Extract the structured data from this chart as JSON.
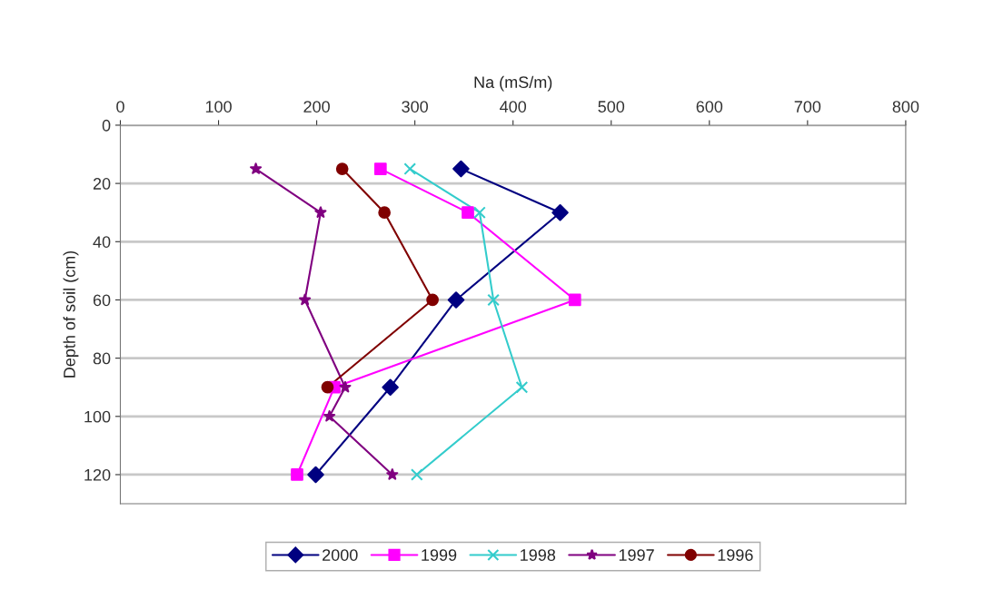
{
  "chart_data": {
    "type": "line",
    "xlabel": "Na (mS/m)",
    "ylabel": "Depth of soil (cm)",
    "xlim": [
      0,
      800
    ],
    "xticks": [
      0,
      100,
      200,
      300,
      400,
      500,
      600,
      700,
      800
    ],
    "ylim": [
      130,
      0
    ],
    "yticks": [
      0,
      20,
      40,
      60,
      80,
      100,
      120
    ],
    "grid": "y",
    "legend": "bottom",
    "line_style": "solid",
    "series": [
      {
        "name": "2000",
        "color": "#000080",
        "marker": "diamond",
        "x": [
          347,
          448,
          342,
          275,
          199
        ],
        "values": [
          15,
          30,
          60,
          90,
          120
        ]
      },
      {
        "name": "1999",
        "color": "#ff00ff",
        "marker": "square",
        "x": [
          265,
          354,
          463,
          218,
          180
        ],
        "values": [
          15,
          30,
          60,
          90,
          120
        ]
      },
      {
        "name": "1998",
        "color": "#33cccc",
        "marker": "cross",
        "x": [
          295,
          366,
          380,
          409,
          302
        ],
        "values": [
          15,
          30,
          60,
          90,
          120
        ]
      },
      {
        "name": "1997",
        "color": "#800080",
        "marker": "star",
        "x": [
          138,
          204,
          188,
          229,
          213,
          277
        ],
        "values": [
          15,
          30,
          60,
          90,
          100,
          120
        ]
      },
      {
        "name": "1996",
        "color": "#800000",
        "marker": "circle",
        "x": [
          226,
          269,
          318,
          211
        ],
        "values": [
          15,
          30,
          60,
          90
        ]
      }
    ]
  }
}
